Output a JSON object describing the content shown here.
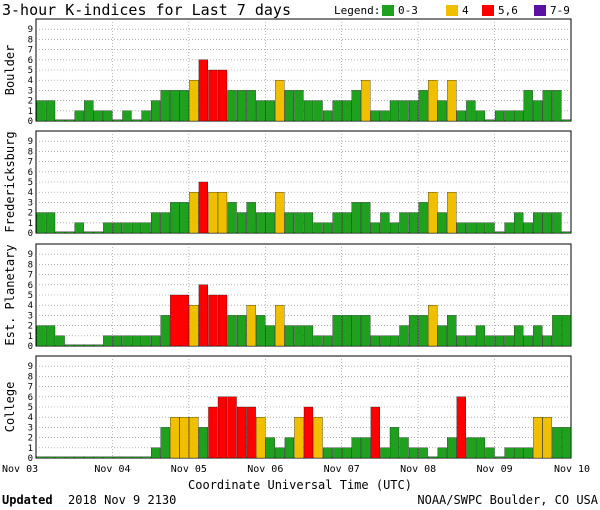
{
  "title": "3-hour K-indices for Last 7 days",
  "legend": {
    "label": "Legend:",
    "items": [
      {
        "label": "0-3",
        "color": "#1fa01f"
      },
      {
        "label": "4",
        "color": "#f0c000"
      },
      {
        "label": "5,6",
        "color": "#ff0000"
      },
      {
        "label": "7-9",
        "color": "#5a10a0"
      }
    ]
  },
  "footer": {
    "updated_label": "Updated",
    "updated_value": "2018 Nov  9 2130",
    "credit": "NOAA/SWPC Boulder, CO USA"
  },
  "chart_data": {
    "type": "bar",
    "title": "3-hour K-indices for Last 7 days",
    "xlabel": "Coordinate Universal Time (UTC)",
    "x_ticks": [
      "Nov 03",
      "Nov 04",
      "Nov 05",
      "Nov 06",
      "Nov 07",
      "Nov 08",
      "Nov 09",
      "Nov 10"
    ],
    "y_ticks": [
      "0",
      "1",
      "2",
      "3",
      "4",
      "5",
      "6",
      "7",
      "8",
      "9"
    ],
    "ylim": [
      0,
      9
    ],
    "panels": [
      {
        "name": "Boulder",
        "values": [
          2,
          2,
          0,
          0,
          1,
          2,
          1,
          1,
          0,
          1,
          0,
          1,
          2,
          3,
          3,
          3,
          4,
          6,
          5,
          5,
          3,
          3,
          3,
          2,
          2,
          4,
          3,
          3,
          2,
          2,
          1,
          2,
          2,
          3,
          4,
          1,
          1,
          2,
          2,
          2,
          3,
          4,
          2,
          4,
          1,
          2,
          1,
          0,
          1,
          1,
          1,
          3,
          2,
          3,
          3,
          0
        ]
      },
      {
        "name": "Fredericksburg",
        "values": [
          2,
          2,
          0,
          0,
          1,
          0,
          0,
          1,
          1,
          1,
          1,
          1,
          2,
          2,
          3,
          3,
          4,
          5,
          4,
          4,
          3,
          2,
          3,
          2,
          2,
          4,
          2,
          2,
          2,
          1,
          1,
          2,
          2,
          3,
          3,
          1,
          2,
          1,
          2,
          2,
          3,
          4,
          2,
          4,
          1,
          1,
          1,
          1,
          0,
          1,
          2,
          1,
          2,
          2,
          2,
          0
        ]
      },
      {
        "name": "Est. Planetary",
        "values": [
          2,
          2,
          1,
          0,
          0,
          0,
          0,
          1,
          1,
          1,
          1,
          1,
          1,
          3,
          5,
          5,
          4,
          6,
          5,
          5,
          3,
          3,
          4,
          3,
          2,
          4,
          2,
          2,
          2,
          1,
          1,
          3,
          3,
          3,
          3,
          1,
          1,
          1,
          2,
          3,
          3,
          4,
          2,
          3,
          1,
          1,
          2,
          1,
          1,
          1,
          2,
          1,
          2,
          1,
          3,
          3
        ]
      },
      {
        "name": "College",
        "values": [
          0,
          0,
          0,
          0,
          0,
          0,
          0,
          0,
          0,
          0,
          0,
          0,
          1,
          3,
          4,
          4,
          4,
          3,
          5,
          6,
          6,
          5,
          5,
          4,
          2,
          1,
          2,
          4,
          5,
          4,
          1,
          1,
          1,
          2,
          2,
          5,
          1,
          3,
          2,
          1,
          1,
          0,
          1,
          2,
          6,
          2,
          2,
          1,
          0,
          1,
          1,
          1,
          4,
          4,
          3,
          3
        ]
      }
    ]
  }
}
